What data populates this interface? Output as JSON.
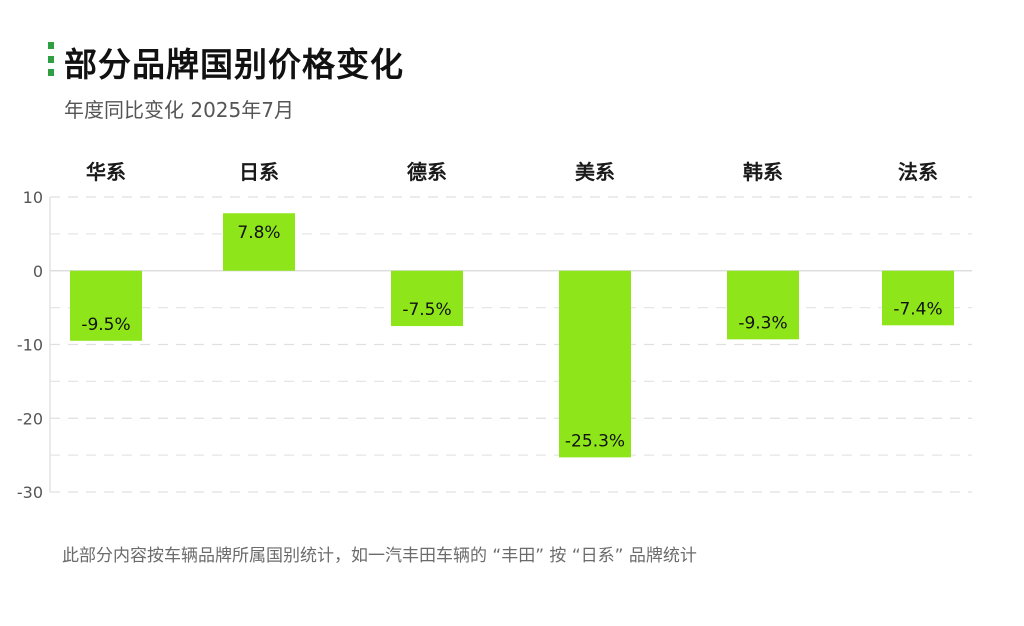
{
  "header": {
    "title": "部分品牌国别价格变化",
    "subtitle": "年度同比变化 2025年7月"
  },
  "footnote": "此部分内容按车辆品牌所属国别统计，如一汽丰田车辆的 “丰田” 按 “日系” 品牌统计",
  "colors": {
    "bar": "#8ee61a",
    "accent": "#2ea043",
    "grid": "#dedede"
  },
  "chart_data": {
    "type": "bar",
    "categories": [
      "华系",
      "日系",
      "德系",
      "美系",
      "韩系",
      "法系"
    ],
    "values": [
      -9.5,
      7.8,
      -7.5,
      -25.3,
      -9.3,
      -7.4
    ],
    "data_labels": [
      "-9.5%",
      "7.8%",
      "-7.5%",
      "-25.3%",
      "-9.3%",
      "-7.4%"
    ],
    "ylim": [
      -30,
      10
    ],
    "yticks": [
      10,
      0,
      -10,
      -20,
      -30
    ],
    "ytick_labels": [
      "10",
      "0",
      "-10",
      "-20",
      "-30"
    ],
    "category_axis_position": "top",
    "grid": true,
    "unit": "%"
  }
}
